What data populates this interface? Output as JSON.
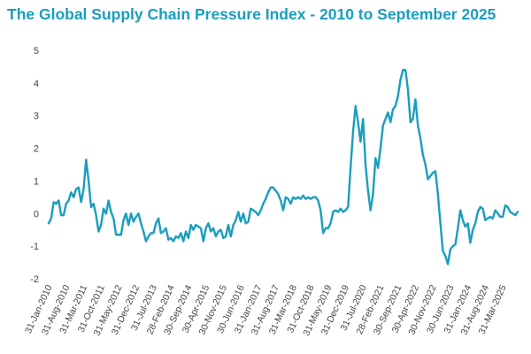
{
  "title": "The Global Supply Chain Pressure Index - 2010 to September 2025",
  "chart_data": {
    "type": "line",
    "title": "The Global Supply Chain Pressure Index - 2010 to September 2025",
    "xlabel": "",
    "ylabel": "",
    "ylim": [
      -2,
      5
    ],
    "yticks": [
      "5",
      "4",
      "3",
      "2",
      "1",
      "0",
      "-1",
      "-2"
    ],
    "xlim": [
      "2010-01",
      "2025-09"
    ],
    "xticks": [
      {
        "label": "31-Jan-2010",
        "date": "2010-01"
      },
      {
        "label": "31-Aug-2010",
        "date": "2010-08"
      },
      {
        "label": "31-Mar-2011",
        "date": "2011-03"
      },
      {
        "label": "31-Oct-2011",
        "date": "2011-10"
      },
      {
        "label": "31-May-2012",
        "date": "2012-05"
      },
      {
        "label": "31-Dec-2012",
        "date": "2012-12"
      },
      {
        "label": "31-Jul-2013",
        "date": "2013-07"
      },
      {
        "label": "28-Feb-2014",
        "date": "2014-02"
      },
      {
        "label": "30-Sep-2014",
        "date": "2014-09"
      },
      {
        "label": "30-Apr-2015",
        "date": "2015-04"
      },
      {
        "label": "30-Nov-2015",
        "date": "2015-11"
      },
      {
        "label": "30-Jun-2016",
        "date": "2016-06"
      },
      {
        "label": "31-Jan-2017",
        "date": "2017-01"
      },
      {
        "label": "31-Aug-2017",
        "date": "2017-08"
      },
      {
        "label": "31-Mar-2018",
        "date": "2018-03"
      },
      {
        "label": "31-Oct-2018",
        "date": "2018-10"
      },
      {
        "label": "31-May-2019",
        "date": "2019-05"
      },
      {
        "label": "31-Dec-2019",
        "date": "2019-12"
      },
      {
        "label": "31-Jul-2020",
        "date": "2020-07"
      },
      {
        "label": "28-Feb-2021",
        "date": "2021-02"
      },
      {
        "label": "30-Sep-2021",
        "date": "2021-09"
      },
      {
        "label": "30-Apr-2022",
        "date": "2022-04"
      },
      {
        "label": "30-Nov-2022",
        "date": "2022-11"
      },
      {
        "label": "30-Jun-2023",
        "date": "2023-06"
      },
      {
        "label": "31-Jan-2024",
        "date": "2024-01"
      },
      {
        "label": "31-Aug-2024",
        "date": "2024-08"
      },
      {
        "label": "31-Mar-2025",
        "date": "2025-03"
      }
    ],
    "grid": false,
    "legend": "none",
    "line_color": "#1a9ebd",
    "series": [
      {
        "points": [
          [
            "2010-01",
            -0.3
          ],
          [
            "2010-02",
            -0.15
          ],
          [
            "2010-03",
            0.35
          ],
          [
            "2010-04",
            0.3
          ],
          [
            "2010-05",
            0.4
          ],
          [
            "2010-06",
            -0.05
          ],
          [
            "2010-07",
            -0.05
          ],
          [
            "2010-08",
            0.3
          ],
          [
            "2010-09",
            0.4
          ],
          [
            "2010-10",
            0.65
          ],
          [
            "2010-11",
            0.5
          ],
          [
            "2010-12",
            0.75
          ],
          [
            "2011-01",
            0.8
          ],
          [
            "2011-02",
            0.35
          ],
          [
            "2011-03",
            0.75
          ],
          [
            "2011-04",
            1.65
          ],
          [
            "2011-05",
            1.0
          ],
          [
            "2011-06",
            0.2
          ],
          [
            "2011-07",
            0.3
          ],
          [
            "2011-08",
            -0.05
          ],
          [
            "2011-09",
            -0.55
          ],
          [
            "2011-10",
            -0.35
          ],
          [
            "2011-11",
            0.15
          ],
          [
            "2011-12",
            0.0
          ],
          [
            "2012-01",
            0.4
          ],
          [
            "2012-02",
            0.05
          ],
          [
            "2012-03",
            -0.15
          ],
          [
            "2012-04",
            -0.65
          ],
          [
            "2012-05",
            -0.65
          ],
          [
            "2012-06",
            -0.65
          ],
          [
            "2012-07",
            -0.2
          ],
          [
            "2012-08",
            0.0
          ],
          [
            "2012-09",
            -0.35
          ],
          [
            "2012-10",
            0.0
          ],
          [
            "2012-11",
            -0.25
          ],
          [
            "2012-12",
            -0.1
          ],
          [
            "2013-01",
            0.0
          ],
          [
            "2013-02",
            -0.3
          ],
          [
            "2013-03",
            -0.55
          ],
          [
            "2013-04",
            -0.85
          ],
          [
            "2013-05",
            -0.7
          ],
          [
            "2013-06",
            -0.6
          ],
          [
            "2013-07",
            -0.6
          ],
          [
            "2013-08",
            -0.3
          ],
          [
            "2013-09",
            -0.15
          ],
          [
            "2013-10",
            -0.6
          ],
          [
            "2013-11",
            -0.55
          ],
          [
            "2013-12",
            -0.45
          ],
          [
            "2014-01",
            -0.8
          ],
          [
            "2014-02",
            -0.75
          ],
          [
            "2014-03",
            -0.85
          ],
          [
            "2014-04",
            -0.7
          ],
          [
            "2014-05",
            -0.75
          ],
          [
            "2014-06",
            -0.6
          ],
          [
            "2014-07",
            -0.85
          ],
          [
            "2014-08",
            -0.55
          ],
          [
            "2014-09",
            -0.75
          ],
          [
            "2014-10",
            -0.35
          ],
          [
            "2014-11",
            -0.5
          ],
          [
            "2014-12",
            -0.35
          ],
          [
            "2015-01",
            -0.4
          ],
          [
            "2015-02",
            -0.45
          ],
          [
            "2015-03",
            -0.85
          ],
          [
            "2015-04",
            -0.45
          ],
          [
            "2015-05",
            -0.3
          ],
          [
            "2015-06",
            -0.55
          ],
          [
            "2015-07",
            -0.45
          ],
          [
            "2015-08",
            -0.7
          ],
          [
            "2015-09",
            -0.55
          ],
          [
            "2015-10",
            -0.5
          ],
          [
            "2015-11",
            -0.75
          ],
          [
            "2015-12",
            -0.7
          ],
          [
            "2016-01",
            -0.35
          ],
          [
            "2016-02",
            -0.7
          ],
          [
            "2016-03",
            -0.35
          ],
          [
            "2016-04",
            -0.2
          ],
          [
            "2016-05",
            0.05
          ],
          [
            "2016-06",
            -0.25
          ],
          [
            "2016-07",
            0.0
          ],
          [
            "2016-08",
            -0.3
          ],
          [
            "2016-09",
            -0.25
          ],
          [
            "2016-10",
            0.15
          ],
          [
            "2016-11",
            0.1
          ],
          [
            "2016-12",
            0.05
          ],
          [
            "2017-01",
            -0.05
          ],
          [
            "2017-02",
            0.1
          ],
          [
            "2017-03",
            0.3
          ],
          [
            "2017-04",
            0.45
          ],
          [
            "2017-05",
            0.65
          ],
          [
            "2017-06",
            0.8
          ],
          [
            "2017-07",
            0.8
          ],
          [
            "2017-08",
            0.7
          ],
          [
            "2017-09",
            0.6
          ],
          [
            "2017-10",
            0.4
          ],
          [
            "2017-11",
            0.1
          ],
          [
            "2017-12",
            0.5
          ],
          [
            "2018-01",
            0.45
          ],
          [
            "2018-02",
            0.3
          ],
          [
            "2018-03",
            0.5
          ],
          [
            "2018-04",
            0.45
          ],
          [
            "2018-05",
            0.5
          ],
          [
            "2018-06",
            0.45
          ],
          [
            "2018-07",
            0.55
          ],
          [
            "2018-08",
            0.45
          ],
          [
            "2018-09",
            0.5
          ],
          [
            "2018-10",
            0.45
          ],
          [
            "2018-11",
            0.5
          ],
          [
            "2018-12",
            0.5
          ],
          [
            "2019-01",
            0.4
          ],
          [
            "2019-02",
            0.1
          ],
          [
            "2019-03",
            -0.6
          ],
          [
            "2019-04",
            -0.45
          ],
          [
            "2019-05",
            -0.45
          ],
          [
            "2019-06",
            -0.3
          ],
          [
            "2019-07",
            0.05
          ],
          [
            "2019-08",
            0.1
          ],
          [
            "2019-09",
            0.05
          ],
          [
            "2019-10",
            0.15
          ],
          [
            "2019-11",
            0.05
          ],
          [
            "2019-12",
            0.1
          ],
          [
            "2020-01",
            0.2
          ],
          [
            "2020-02",
            1.4
          ],
          [
            "2020-03",
            2.5
          ],
          [
            "2020-04",
            3.3
          ],
          [
            "2020-05",
            2.8
          ],
          [
            "2020-06",
            2.2
          ],
          [
            "2020-07",
            2.9
          ],
          [
            "2020-08",
            1.5
          ],
          [
            "2020-09",
            0.7
          ],
          [
            "2020-10",
            0.1
          ],
          [
            "2020-11",
            0.6
          ],
          [
            "2020-12",
            1.7
          ],
          [
            "2021-01",
            1.4
          ],
          [
            "2021-02",
            2.0
          ],
          [
            "2021-03",
            2.7
          ],
          [
            "2021-04",
            2.9
          ],
          [
            "2021-05",
            3.1
          ],
          [
            "2021-06",
            2.8
          ],
          [
            "2021-07",
            3.2
          ],
          [
            "2021-08",
            3.3
          ],
          [
            "2021-09",
            3.6
          ],
          [
            "2021-10",
            4.1
          ],
          [
            "2021-11",
            4.4
          ],
          [
            "2021-12",
            4.4
          ],
          [
            "2022-01",
            3.8
          ],
          [
            "2022-02",
            2.8
          ],
          [
            "2022-03",
            2.9
          ],
          [
            "2022-04",
            3.5
          ],
          [
            "2022-05",
            2.7
          ],
          [
            "2022-06",
            2.3
          ],
          [
            "2022-07",
            1.8
          ],
          [
            "2022-08",
            1.5
          ],
          [
            "2022-09",
            1.05
          ],
          [
            "2022-10",
            1.15
          ],
          [
            "2022-11",
            1.25
          ],
          [
            "2022-12",
            1.3
          ],
          [
            "2023-01",
            0.6
          ],
          [
            "2023-02",
            -0.3
          ],
          [
            "2023-03",
            -1.15
          ],
          [
            "2023-04",
            -1.3
          ],
          [
            "2023-05",
            -1.55
          ],
          [
            "2023-06",
            -1.1
          ],
          [
            "2023-07",
            -1.0
          ],
          [
            "2023-08",
            -0.95
          ],
          [
            "2023-09",
            -0.45
          ],
          [
            "2023-10",
            0.1
          ],
          [
            "2023-11",
            -0.2
          ],
          [
            "2023-12",
            -0.4
          ],
          [
            "2024-01",
            -0.3
          ],
          [
            "2024-02",
            -0.9
          ],
          [
            "2024-03",
            -0.5
          ],
          [
            "2024-04",
            -0.3
          ],
          [
            "2024-05",
            0.05
          ],
          [
            "2024-06",
            0.2
          ],
          [
            "2024-07",
            0.15
          ],
          [
            "2024-08",
            -0.2
          ],
          [
            "2024-09",
            -0.15
          ],
          [
            "2024-10",
            -0.1
          ],
          [
            "2024-11",
            -0.15
          ],
          [
            "2024-12",
            0.1
          ],
          [
            "2025-01",
            0.0
          ],
          [
            "2025-02",
            -0.1
          ],
          [
            "2025-03",
            -0.1
          ],
          [
            "2025-04",
            0.25
          ],
          [
            "2025-05",
            0.2
          ],
          [
            "2025-06",
            0.05
          ],
          [
            "2025-07",
            0.0
          ],
          [
            "2025-08",
            -0.05
          ],
          [
            "2025-09",
            0.05
          ]
        ]
      }
    ]
  }
}
